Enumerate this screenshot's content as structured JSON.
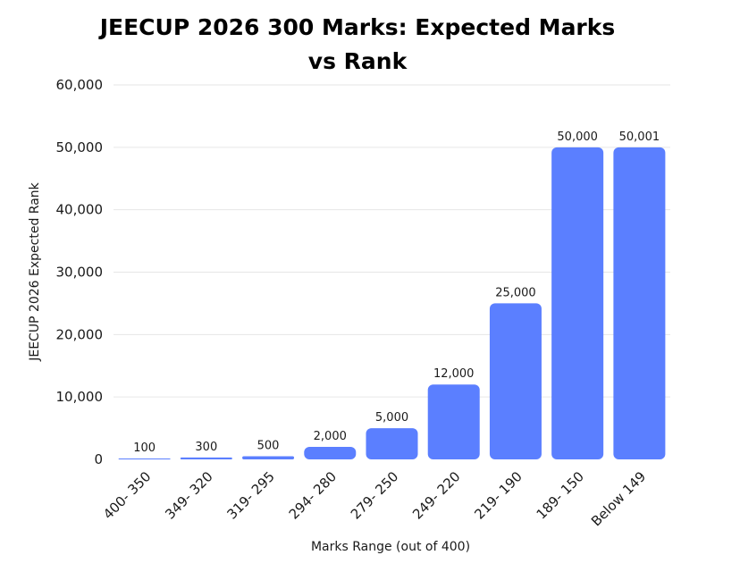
{
  "chart_data": {
    "type": "bar",
    "title": "JEECUP 2026 300 Marks: Expected Marks vs Rank",
    "xlabel": "Marks Range (out of 400)",
    "ylabel": "JEECUP 2026 Expected Rank",
    "categories": [
      "400- 350",
      "349- 320",
      "319- 295",
      "294- 280",
      "279- 250",
      "249- 220",
      "219- 190",
      "189- 150",
      "Below 149"
    ],
    "values": [
      100,
      300,
      500,
      2000,
      5000,
      12000,
      25000,
      50000,
      50001
    ],
    "data_labels": [
      "100",
      "300",
      "500",
      "2,000",
      "5,000",
      "12,000",
      "25,000",
      "50,000",
      "50,001"
    ],
    "ylim": [
      0,
      60000
    ],
    "yticks": [
      0,
      10000,
      20000,
      30000,
      40000,
      50000,
      60000
    ],
    "ytick_labels": [
      "0",
      "10,000",
      "20,000",
      "30,000",
      "40,000",
      "50,000",
      "60,000"
    ],
    "grid": true,
    "legend": "none",
    "bar_color": "#5b7fff",
    "grid_color": "#e6e6e6"
  }
}
